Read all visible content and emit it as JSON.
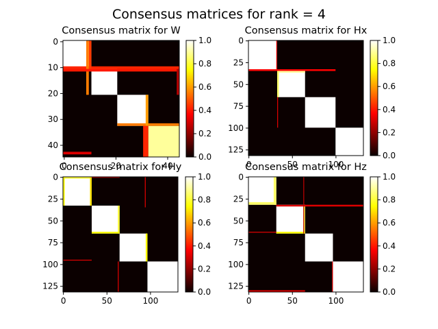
{
  "figure": {
    "title": "Consensus matrices for rank = 4"
  },
  "colorbar_ticks": [
    "0.0",
    "0.2",
    "0.4",
    "0.6",
    "0.8",
    "1.0"
  ],
  "chart_data": [
    {
      "type": "heatmap",
      "title": "Consensus matrix for W",
      "n": 45,
      "ylim": [
        45,
        0
      ],
      "xticks": [
        0,
        20,
        40
      ],
      "yticks": [
        0,
        10,
        20,
        30,
        40
      ],
      "show_xticks": true,
      "colormap": "hot",
      "vmin": 0.0,
      "vmax": 1.0,
      "blocks": [
        {
          "start": 0,
          "end": 11,
          "value": 1.0
        },
        {
          "start": 11,
          "end": 21,
          "value": 1.0
        },
        {
          "start": 21,
          "end": 33,
          "value": 1.0
        },
        {
          "start": 33,
          "end": 45,
          "value": 0.9
        }
      ],
      "features": [
        {
          "r0": 10,
          "r1": 11,
          "c0": 0,
          "c1": 45,
          "value": 0.42
        },
        {
          "r0": 0,
          "r1": 11,
          "c0": 10,
          "c1": 11,
          "value": 0.45
        },
        {
          "r0": 0,
          "r1": 21,
          "c0": 9,
          "c1": 10,
          "value": 0.55
        },
        {
          "r0": 11,
          "r1": 12,
          "c0": 0,
          "c1": 45,
          "value": 0.4
        },
        {
          "r0": 32,
          "r1": 33,
          "c0": 21,
          "c1": 45,
          "value": 0.55
        },
        {
          "r0": 21,
          "r1": 33,
          "c0": 32,
          "c1": 33,
          "value": 0.6
        },
        {
          "r0": 33,
          "r1": 45,
          "c0": 31,
          "c1": 33,
          "value": 0.42
        },
        {
          "r0": 43,
          "r1": 44,
          "c0": 0,
          "c1": 11,
          "value": 0.3
        },
        {
          "r0": 11,
          "r1": 21,
          "c0": 44,
          "c1": 45,
          "value": 0.25
        }
      ]
    },
    {
      "type": "heatmap",
      "title": "Consensus matrix for Hx",
      "n": 132,
      "ylim": [
        132,
        0
      ],
      "xticks": [
        0,
        50,
        100
      ],
      "yticks": [
        0,
        25,
        50,
        75,
        100,
        125
      ],
      "show_xticks": true,
      "colormap": "hot",
      "vmin": 0.0,
      "vmax": 1.0,
      "blocks": [
        {
          "start": 0,
          "end": 33,
          "value": 1.0
        },
        {
          "start": 33,
          "end": 65,
          "value": 1.0
        },
        {
          "start": 65,
          "end": 100,
          "value": 1.0
        },
        {
          "start": 100,
          "end": 132,
          "value": 1.0
        }
      ],
      "features": [
        {
          "r0": 33,
          "r1": 35,
          "c0": 0,
          "c1": 100,
          "value": 0.35
        },
        {
          "r0": 35,
          "r1": 37,
          "c0": 33,
          "c1": 65,
          "value": 0.9
        },
        {
          "r0": 35,
          "r1": 65,
          "c0": 33,
          "c1": 35,
          "value": 0.85
        },
        {
          "r0": 65,
          "r1": 100,
          "c0": 33,
          "c1": 34,
          "value": 0.3
        },
        {
          "r0": 0,
          "r1": 33,
          "c0": 32,
          "c1": 33,
          "value": 0.3
        }
      ]
    },
    {
      "type": "heatmap",
      "title": "Consensus matrix for Hy",
      "n": 132,
      "ylim": [
        132,
        0
      ],
      "xticks": [
        0,
        50,
        100
      ],
      "yticks": [
        0,
        25,
        50,
        75,
        100,
        125
      ],
      "show_xticks": true,
      "colormap": "hot",
      "vmin": 0.0,
      "vmax": 1.0,
      "blocks": [
        {
          "start": 0,
          "end": 33,
          "value": 1.0
        },
        {
          "start": 33,
          "end": 65,
          "value": 1.0
        },
        {
          "start": 65,
          "end": 97,
          "value": 1.0
        },
        {
          "start": 97,
          "end": 132,
          "value": 1.0
        }
      ],
      "features": [
        {
          "r0": 0,
          "r1": 2,
          "c0": 0,
          "c1": 33,
          "value": 0.8
        },
        {
          "r0": 0,
          "r1": 33,
          "c0": 0,
          "c1": 2,
          "value": 0.75
        },
        {
          "r0": 0,
          "r1": 33,
          "c0": 31,
          "c1": 33,
          "value": 0.7
        },
        {
          "r0": 33,
          "r1": 65,
          "c0": 63,
          "c1": 65,
          "value": 0.8
        },
        {
          "r0": 63,
          "r1": 65,
          "c0": 33,
          "c1": 65,
          "value": 0.75
        },
        {
          "r0": 65,
          "r1": 97,
          "c0": 95,
          "c1": 97,
          "value": 0.75
        },
        {
          "r0": 0,
          "r1": 1,
          "c0": 33,
          "c1": 65,
          "value": 0.3
        },
        {
          "r0": 0,
          "r1": 35,
          "c0": 94,
          "c1": 95,
          "value": 0.3
        },
        {
          "r0": 95,
          "r1": 96,
          "c0": 0,
          "c1": 33,
          "value": 0.3
        },
        {
          "r0": 97,
          "r1": 132,
          "c0": 63,
          "c1": 64,
          "value": 0.3
        }
      ]
    },
    {
      "type": "heatmap",
      "title": "Consensus matrix for Hz",
      "n": 132,
      "ylim": [
        132,
        0
      ],
      "xticks": [
        0,
        50,
        100
      ],
      "yticks": [
        0,
        25,
        50,
        75,
        100,
        125
      ],
      "show_xticks": true,
      "colormap": "hot",
      "vmin": 0.0,
      "vmax": 1.0,
      "blocks": [
        {
          "start": 0,
          "end": 32,
          "value": 1.0
        },
        {
          "start": 32,
          "end": 65,
          "value": 1.0
        },
        {
          "start": 65,
          "end": 97,
          "value": 1.0
        },
        {
          "start": 97,
          "end": 132,
          "value": 1.0
        }
      ],
      "features": [
        {
          "r0": 0,
          "r1": 32,
          "c0": 29,
          "c1": 32,
          "value": 0.85
        },
        {
          "r0": 29,
          "r1": 32,
          "c0": 0,
          "c1": 32,
          "value": 0.85
        },
        {
          "r0": 32,
          "r1": 65,
          "c0": 63,
          "c1": 65,
          "value": 0.8
        },
        {
          "r0": 63,
          "r1": 65,
          "c0": 32,
          "c1": 65,
          "value": 0.75
        },
        {
          "r0": 32,
          "r1": 34,
          "c0": 32,
          "c1": 132,
          "value": 0.3
        },
        {
          "r0": 63,
          "r1": 64,
          "c0": 0,
          "c1": 32,
          "value": 0.3
        },
        {
          "r0": 0,
          "r1": 65,
          "c0": 63,
          "c1": 64,
          "value": 0.25
        },
        {
          "r0": 130,
          "r1": 132,
          "c0": 0,
          "c1": 65,
          "value": 0.3
        },
        {
          "r0": 97,
          "r1": 132,
          "c0": 96,
          "c1": 97,
          "value": 0.3
        }
      ]
    }
  ]
}
